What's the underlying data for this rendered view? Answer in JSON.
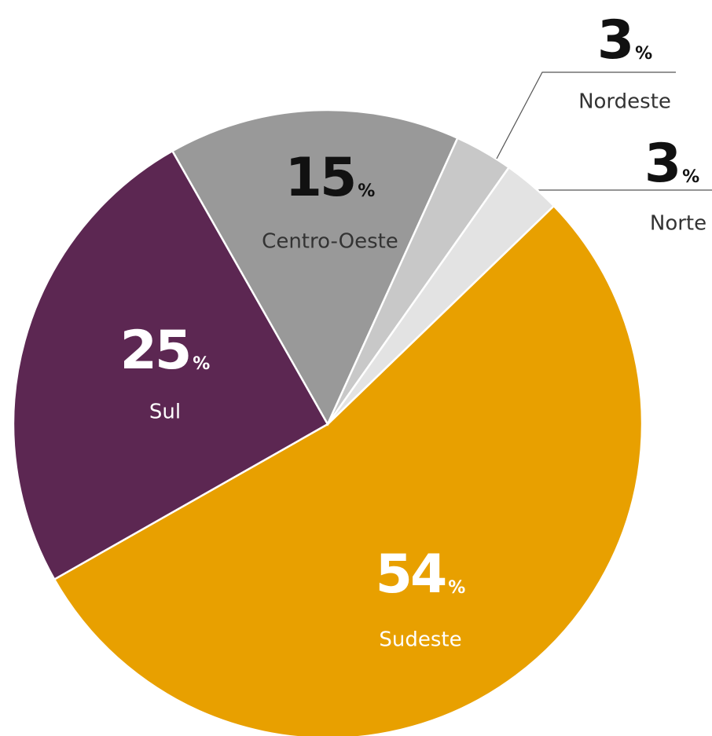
{
  "chart_data": {
    "type": "pie",
    "categories": [
      "Sudeste",
      "Sul",
      "Centro-Oeste",
      "Nordeste",
      "Norte"
    ],
    "values": [
      54,
      25,
      15,
      3,
      3
    ],
    "value_labels": [
      "54%",
      "25%",
      "15%",
      "3%",
      "3%"
    ],
    "colors": [
      "#e8a000",
      "#5c2752",
      "#999999",
      "#c8c8c8",
      "#e3e3e3"
    ]
  }
}
